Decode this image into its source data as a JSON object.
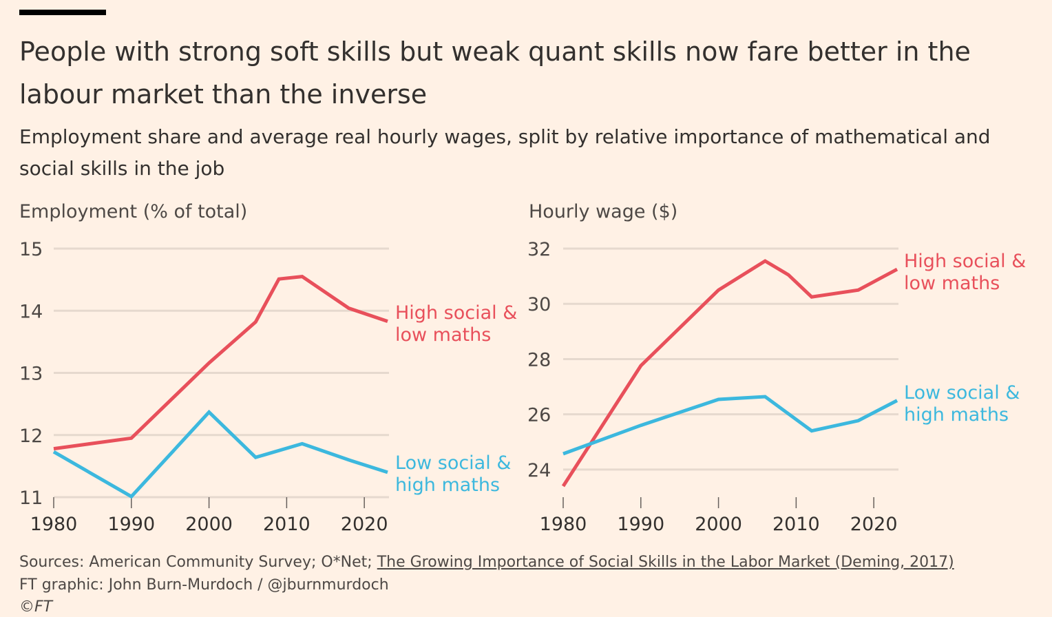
{
  "title": "People with strong soft skills but weak quant skills now fare better in the labour market than the inverse",
  "subtitle": "Employment share and average real hourly wages, split by relative importance of mathematical and social skills in the job",
  "colors": {
    "high_social": "#E8505B",
    "low_social": "#3CB8DE",
    "grid": "#E6D9CE"
  },
  "chart_data": [
    {
      "type": "line",
      "title": "Employment (% of total)",
      "xlim": [
        1980,
        2023
      ],
      "ylim": [
        11,
        15
      ],
      "xticks": [
        1980,
        1990,
        2000,
        2010,
        2020
      ],
      "yticks": [
        11,
        12,
        13,
        14,
        15
      ],
      "grid": true,
      "series": [
        {
          "name": "High social & low maths",
          "label_lines": [
            "High social &",
            "low maths"
          ],
          "color": "#E8505B",
          "x": [
            1980,
            1990,
            2000,
            2006,
            2009,
            2012,
            2018,
            2023
          ],
          "y": [
            11.78,
            11.95,
            13.16,
            13.82,
            14.51,
            14.55,
            14.04,
            13.83
          ]
        },
        {
          "name": "Low social & high maths",
          "label_lines": [
            "Low social &",
            "high maths"
          ],
          "color": "#3CB8DE",
          "x": [
            1980,
            1990,
            2000,
            2006,
            2012,
            2018,
            2023
          ],
          "y": [
            11.73,
            11.01,
            12.37,
            11.64,
            11.86,
            11.6,
            11.4
          ]
        }
      ]
    },
    {
      "type": "line",
      "title": "Hourly wage ($)",
      "xlim": [
        1980,
        2023
      ],
      "ylim": [
        23,
        32
      ],
      "xticks": [
        1980,
        1990,
        2000,
        2010,
        2020
      ],
      "yticks": [
        24,
        26,
        28,
        30,
        32
      ],
      "grid": true,
      "series": [
        {
          "name": "High social & low maths",
          "label_lines": [
            "High social &",
            "low maths"
          ],
          "color": "#E8505B",
          "x": [
            1980,
            1990,
            2000,
            2006,
            2009,
            2012,
            2018,
            2023
          ],
          "y": [
            23.4,
            27.76,
            30.5,
            31.55,
            31.05,
            30.25,
            30.5,
            31.25
          ]
        },
        {
          "name": "Low social & high maths",
          "label_lines": [
            "Low social &",
            "high maths"
          ],
          "color": "#3CB8DE",
          "x": [
            1980,
            1990,
            2000,
            2006,
            2012,
            2018,
            2023
          ],
          "y": [
            24.57,
            25.6,
            26.54,
            26.64,
            25.4,
            25.77,
            26.5
          ]
        }
      ]
    }
  ],
  "footer": {
    "sources_prefix": "Sources: American Community Survey; O*Net; ",
    "sources_link": "The Growing Importance of Social Skills in the Labor Market (Deming, 2017)",
    "credit": "FT graphic: John Burn-Murdoch / @jburnmurdoch",
    "copyright": "©FT"
  }
}
